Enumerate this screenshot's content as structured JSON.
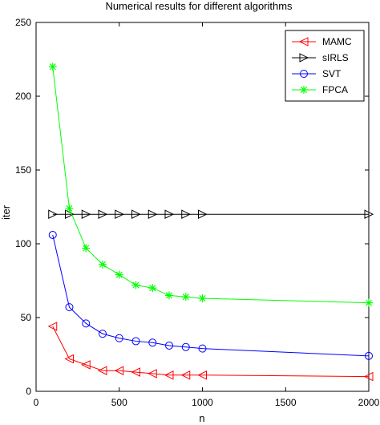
{
  "chart_data": {
    "type": "line",
    "title": "Numerical results for different algorithms",
    "xlabel": "n",
    "ylabel": "iter",
    "xlim": [
      0,
      2000
    ],
    "ylim": [
      0,
      250
    ],
    "xticks": [
      0,
      500,
      1000,
      1500,
      2000
    ],
    "yticks": [
      0,
      50,
      100,
      150,
      200,
      250
    ],
    "grid": false,
    "legend_position": "top-right",
    "series": [
      {
        "name": "MAMC",
        "color": "#ff0000",
        "marker": "triangle-left",
        "x": [
          100,
          200,
          300,
          400,
          500,
          600,
          700,
          800,
          900,
          1000,
          2000
        ],
        "y": [
          44,
          22,
          18,
          14,
          14,
          13,
          12,
          11,
          11,
          11,
          10
        ]
      },
      {
        "name": "sIRLS",
        "color": "#000000",
        "marker": "triangle-right",
        "x": [
          100,
          200,
          300,
          400,
          500,
          600,
          700,
          800,
          900,
          1000,
          2000
        ],
        "y": [
          120,
          120,
          120,
          120,
          120,
          120,
          120,
          120,
          120,
          120,
          120
        ]
      },
      {
        "name": "SVT",
        "color": "#0000ff",
        "marker": "circle",
        "x": [
          100,
          200,
          300,
          400,
          500,
          600,
          700,
          800,
          900,
          1000,
          2000
        ],
        "y": [
          106,
          57,
          46,
          39,
          36,
          34,
          33,
          31,
          30,
          29,
          24
        ]
      },
      {
        "name": "FPCA",
        "color": "#00ff00",
        "marker": "star",
        "x": [
          100,
          200,
          300,
          400,
          500,
          600,
          700,
          800,
          900,
          1000,
          2000
        ],
        "y": [
          220,
          124,
          97,
          86,
          79,
          72,
          70,
          65,
          64,
          63,
          60
        ]
      }
    ]
  }
}
